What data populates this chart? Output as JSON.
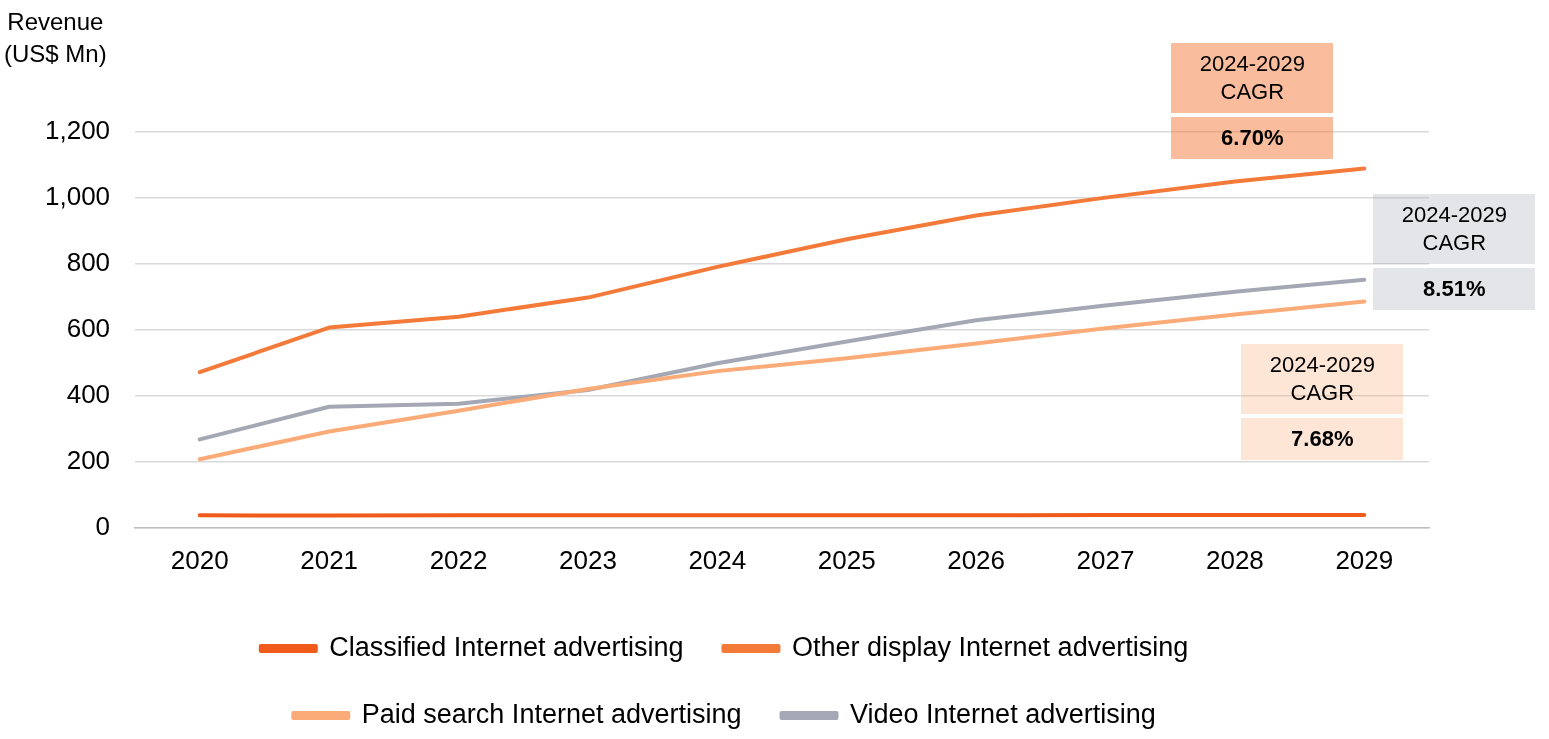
{
  "chart_data": {
    "type": "line",
    "ylabel": "Revenue\n(US$ Mn)",
    "categories": [
      "2020",
      "2021",
      "2022",
      "2023",
      "2024",
      "2025",
      "2026",
      "2027",
      "2028",
      "2029"
    ],
    "series": [
      {
        "name": "Classified Internet advertising",
        "color": "#f05a1a",
        "values": [
          38,
          37,
          38,
          38,
          38,
          38,
          38,
          39,
          39,
          39
        ]
      },
      {
        "name": "Other display Internet advertising",
        "color": "#f47a3a",
        "values": [
          472,
          607,
          640,
          698,
          791,
          875,
          947,
          1001,
          1050,
          1089
        ]
      },
      {
        "name": "Paid search Internet advertising",
        "color": "#fbab78",
        "values": [
          208,
          292,
          355,
          421,
          475,
          514,
          559,
          605,
          647,
          686
        ]
      },
      {
        "name": "Video Internet advertising",
        "color": "#a4a8b4",
        "values": [
          268,
          367,
          376,
          418,
          499,
          565,
          629,
          674,
          716,
          752
        ]
      }
    ],
    "ylim": [
      0,
      1200
    ],
    "yticks": [
      0,
      200,
      400,
      600,
      800,
      {
        "value": 1000,
        "label": "1,000"
      },
      {
        "value": 1200,
        "label": "1,200"
      }
    ],
    "grid": "y",
    "legend": "bottom",
    "marker": "none",
    "line_style": "solid",
    "annotations": [
      {
        "text": "2024-2029\nCAGR\n6.70%",
        "x": "2029",
        "y": 1089
      },
      {
        "text": "2024-2029\nCAGR\n8.51%",
        "x": "2029",
        "y": 752
      },
      {
        "text": "2024-2029\nCAGR\n7.68%",
        "x": "2029",
        "y": 686
      }
    ]
  }
}
